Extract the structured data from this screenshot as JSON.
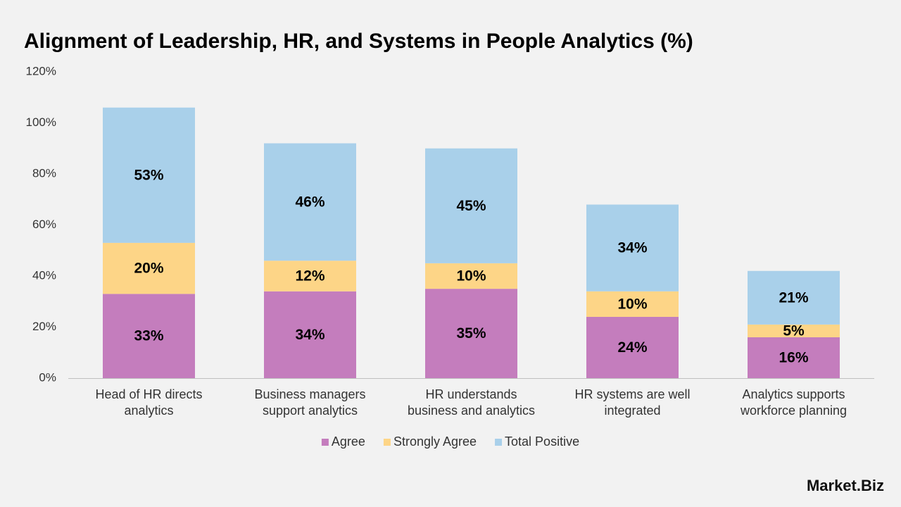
{
  "chart_data": {
    "type": "stacked_bar",
    "title": "Alignment of Leadership, HR, and Systems in People Analytics (%)",
    "categories": [
      "Head of HR directs analytics",
      "Business managers support analytics",
      "HR understands business and analytics",
      "HR systems are well integrated",
      "Analytics supports workforce planning"
    ],
    "series": [
      {
        "name": "Agree",
        "color": "#c47dbd",
        "values": [
          33,
          34,
          35,
          24,
          16
        ],
        "value_labels": [
          "33%",
          "34%",
          "35%",
          "24%",
          "16%"
        ]
      },
      {
        "name": "Strongly Agree",
        "color": "#fdd587",
        "values": [
          20,
          12,
          10,
          10,
          5
        ],
        "value_labels": [
          "20%",
          "12%",
          "10%",
          "10%",
          "5%"
        ]
      },
      {
        "name": "Total Positive",
        "color": "#a9d0ea",
        "values": [
          53,
          46,
          45,
          34,
          21
        ],
        "value_labels": [
          "53%",
          "46%",
          "45%",
          "34%",
          "21%"
        ]
      }
    ],
    "ylim": [
      0,
      120
    ],
    "yticks": [
      {
        "value": 0,
        "label": "0%"
      },
      {
        "value": 20,
        "label": "20%"
      },
      {
        "value": 40,
        "label": "40%"
      },
      {
        "value": 60,
        "label": "60%"
      },
      {
        "value": 80,
        "label": "80%"
      },
      {
        "value": 100,
        "label": "100%"
      },
      {
        "value": 120,
        "label": "120%"
      }
    ],
    "grid": false,
    "legend": "bottom",
    "watermark": "Market.Biz"
  }
}
